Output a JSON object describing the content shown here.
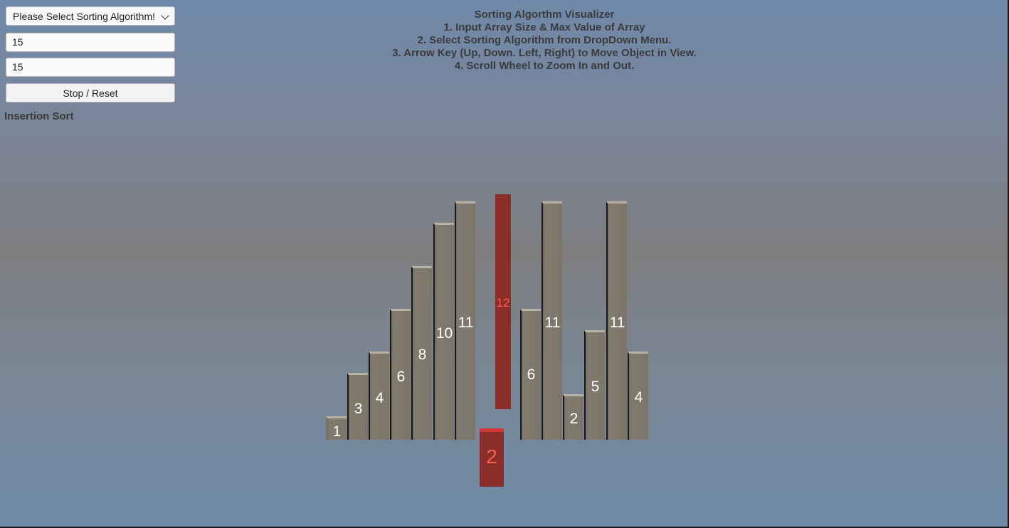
{
  "controls": {
    "algorithm_dropdown": "Please Select Sorting Algorithm!",
    "array_size_value": "15",
    "max_value_value": "15",
    "stop_reset_label": "Stop / Reset",
    "current_algorithm": "Insertion Sort"
  },
  "instructions": {
    "title": "Sorting Algorthm Visualizer",
    "lines": [
      "1. Input Array Size & Max Value of Array",
      "2. Select Sorting Algorithm from DropDown Menu.",
      "3. Arrow Key (Up, Down. Left, Right) to Move Object in View.",
      "4. Scroll Wheel to Zoom In and Out."
    ]
  },
  "bars": {
    "left": [
      "1",
      "3",
      "4",
      "6",
      "8",
      "10",
      "11"
    ],
    "right": [
      "6",
      "11",
      "2",
      "5",
      "11",
      "4"
    ]
  },
  "highlighted": {
    "lifted_value": "12",
    "key_value": "2"
  },
  "colors": {
    "bar": "#7c766a",
    "highlight": "#8b2e29",
    "highlight_text": "#ff5d56"
  }
}
